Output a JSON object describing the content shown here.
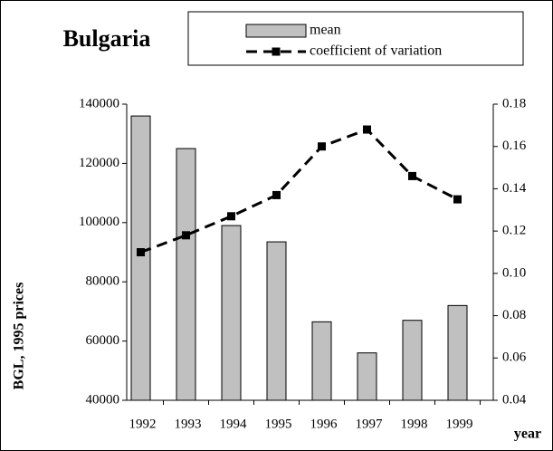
{
  "chart_data": {
    "type": "bar-line",
    "title": "Bulgaria",
    "y_label": "BGL, 1995 prices",
    "x_label": "year",
    "categories": [
      "1992",
      "1993",
      "1994",
      "1995",
      "1996",
      "1997",
      "1998",
      "1999"
    ],
    "series": [
      {
        "name": "mean",
        "type": "bar",
        "color": "#c0c0c0",
        "axis": "y",
        "values": [
          136000,
          125000,
          99000,
          93500,
          66500,
          56000,
          67000,
          72000
        ]
      },
      {
        "name": "coefficient of variation",
        "type": "line",
        "color": "#000000",
        "axis": "y2",
        "values": [
          0.11,
          0.118,
          0.127,
          0.137,
          0.16,
          0.168,
          0.146,
          0.135
        ]
      }
    ],
    "ylim": [
      40000,
      140000
    ],
    "yticks": [
      40000,
      60000,
      80000,
      100000,
      120000,
      140000
    ],
    "y2lim": [
      0.04,
      0.18
    ],
    "y2ticks": [
      0.04,
      0.06,
      0.08,
      {
        "value": 0.1,
        "label": "0.10"
      },
      0.12,
      0.14,
      0.16,
      0.18
    ],
    "grid": false
  }
}
